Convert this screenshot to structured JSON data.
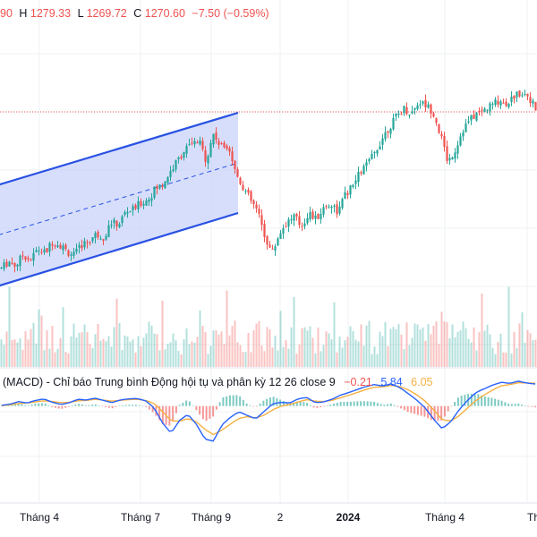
{
  "ohlc_legend": {
    "open": "90",
    "high_label": "H",
    "high": "1279.33",
    "low_label": "L",
    "low": "1269.72",
    "close_label": "C",
    "close": "1270.60",
    "change": "−7.50 (−0.59%)"
  },
  "macd_legend": {
    "title": "(MACD) - Chỉ báo Trung bình Động hội tụ và phân kỳ 12 26 close 9",
    "histogram": "−0.21",
    "macd": "5.84",
    "signal": "6.05"
  },
  "colors": {
    "up": "#26a69a",
    "down": "#ef5350",
    "channel_line": "#2952e3",
    "channel_fill": "#c9d3fb",
    "macd_line": "#2962ff",
    "signal_line": "#f5b041",
    "last_price_line": "#ef5350",
    "grid": "#eef0f3"
  },
  "chart_data": {
    "type": "candlestick",
    "x_ticks": [
      "Tháng 4",
      "Tháng 7",
      "Tháng 9",
      "2",
      "2024",
      "Tháng 4",
      "Th"
    ],
    "last_close": 1270.6,
    "price_path": [
      1080,
      1088,
      1083,
      1096,
      1090,
      1103,
      1098,
      1112,
      1108,
      1100,
      1095,
      1108,
      1113,
      1121,
      1117,
      1135,
      1132,
      1148,
      1150,
      1158,
      1162,
      1175,
      1180,
      1195,
      1208,
      1222,
      1228,
      1232,
      1210,
      1242,
      1225,
      1229,
      1195,
      1178,
      1162,
      1148,
      1118,
      1098,
      1122,
      1135,
      1142,
      1130,
      1146,
      1138,
      1152,
      1158,
      1147,
      1168,
      1178,
      1195,
      1205,
      1218,
      1236,
      1250,
      1262,
      1272,
      1266,
      1280,
      1276,
      1268,
      1240,
      1208,
      1222,
      1246,
      1258,
      1266,
      1270,
      1276,
      1282,
      1278,
      1286,
      1292,
      1288,
      1270
    ],
    "macd_path": [
      0.2,
      0.5,
      1.2,
      0.8,
      1.5,
      1.9,
      1.0,
      0.4,
      0.9,
      1.8,
      1.6,
      2.1,
      1.5,
      0.9,
      1.6,
      1.9,
      2.0,
      1.4,
      -0.5,
      -4.5,
      -7.2,
      -3.8,
      -2.2,
      -4.9,
      -8.8,
      -9.3,
      -5.0,
      -3.0,
      -1.5,
      -2.5,
      -3.4,
      -1.4,
      0.6,
      1.0,
      0.8,
      1.9,
      2.3,
      0.9,
      1.1,
      1.8,
      2.9,
      3.6,
      4.4,
      5.2,
      5.7,
      5.3,
      5.9,
      4.9,
      3.3,
      1.6,
      -0.5,
      -3.5,
      -6.0,
      -4.2,
      -1.0,
      1.5,
      3.6,
      4.6,
      5.6,
      6.3,
      6.0,
      6.6,
      6.1,
      5.84
    ],
    "signal_path": [
      0.1,
      0.3,
      0.7,
      0.8,
      1.1,
      1.4,
      1.2,
      0.9,
      1.0,
      1.4,
      1.5,
      1.8,
      1.6,
      1.3,
      1.5,
      1.7,
      1.8,
      1.5,
      0.7,
      -1.5,
      -3.9,
      -4.0,
      -3.3,
      -4.2,
      -6.2,
      -7.6,
      -6.4,
      -4.8,
      -3.3,
      -2.8,
      -3.2,
      -2.4,
      -1.0,
      0.0,
      0.4,
      1.1,
      1.7,
      1.3,
      1.2,
      1.5,
      2.2,
      2.9,
      3.6,
      4.4,
      5.0,
      5.1,
      5.5,
      5.2,
      4.3,
      3.0,
      1.3,
      -1.0,
      -3.6,
      -4.0,
      -2.6,
      -0.5,
      1.5,
      3.0,
      4.3,
      5.4,
      5.7,
      6.2,
      6.1,
      6.05
    ]
  }
}
